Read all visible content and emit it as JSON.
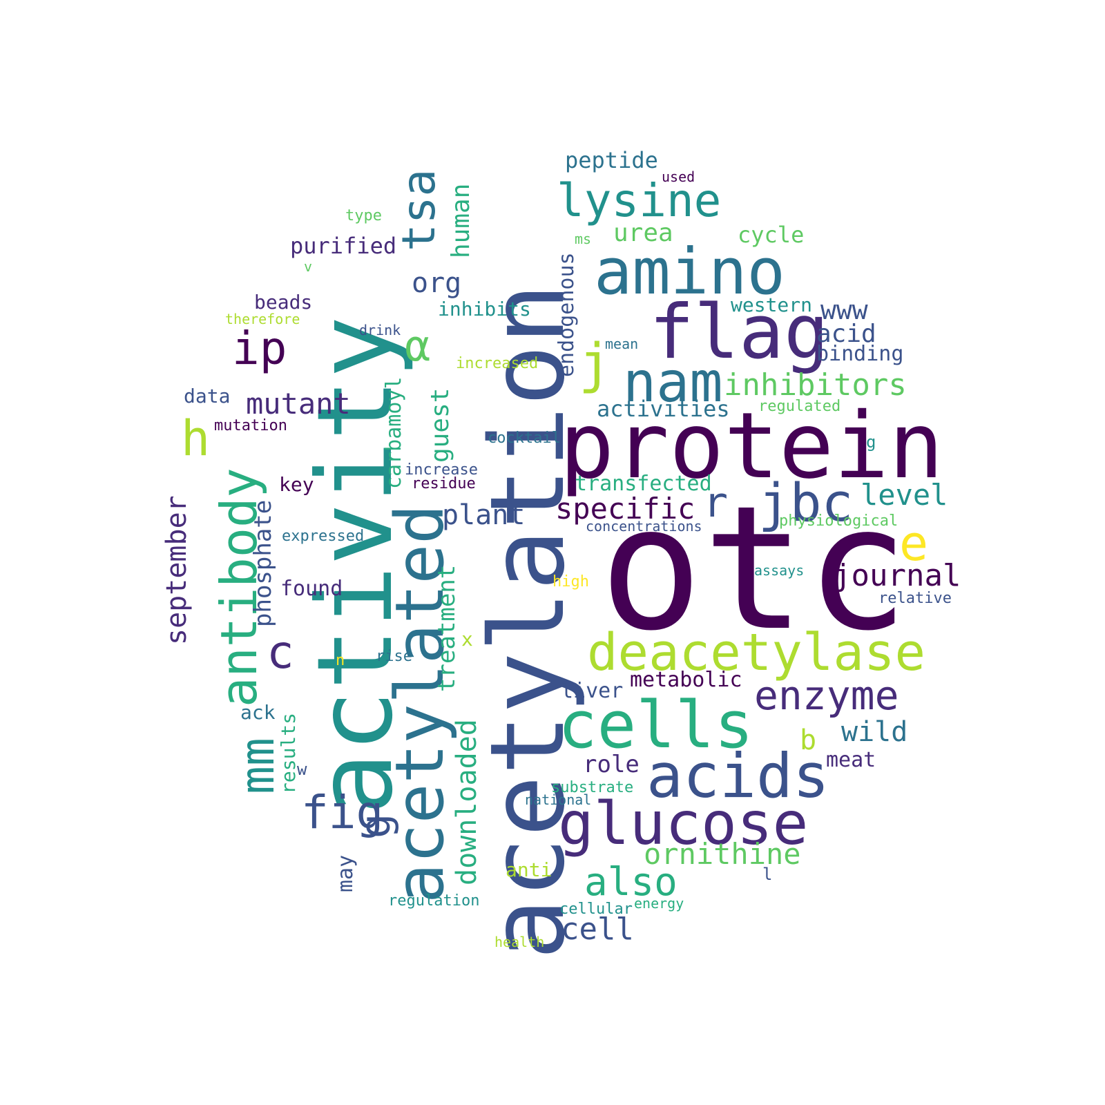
{
  "colors": {
    "c1": "#440154",
    "c2": "#472c7a",
    "c3": "#3b528b",
    "c4": "#2c728e",
    "c5": "#21918c",
    "c6": "#28ae80",
    "c7": "#5ec962",
    "c8": "#addc30",
    "c9": "#fde725"
  },
  "words": {
    "otc": "otc",
    "acetylation": "acetylation",
    "activity": "activity",
    "protein": "protein",
    "deacetylase": "deacetylase",
    "acetylated": "acetylated",
    "amino": "amino",
    "flag": "flag",
    "nam": "nam",
    "cells": "cells",
    "acids": "acids",
    "glucose": "glucose",
    "lysine": "lysine",
    "antibody": "antibody",
    "jbc": "jbc",
    "tsa": "tsa",
    "enzyme": "enzyme",
    "mm": "mm",
    "fig": "fig",
    "ip": "ip",
    "alpha": "α",
    "j": "j",
    "h": "h",
    "c": "c",
    "g": "g",
    "r": "r",
    "e": "e",
    "inhibitors": "inhibitors",
    "also": "also",
    "ornithine": "ornithine",
    "specific": "specific",
    "mutant": "mutant",
    "journal": "journal",
    "plant": "plant",
    "cell": "cell",
    "downloaded": "downloaded",
    "september": "september",
    "phosphate": "phosphate",
    "treatment": "treatment",
    "guest": "guest",
    "endogenous": "endogenous",
    "human": "human",
    "www": "www",
    "level": "level",
    "wild": "wild",
    "acid": "acid",
    "org": "org",
    "purified": "purified",
    "peptide": "peptide",
    "urea": "urea",
    "cycle": "cycle",
    "activities": "activities",
    "metabolic": "metabolic",
    "role": "role",
    "carbamoyl": "carbamoyl",
    "transfected": "transfected",
    "inhibits": "inhibits",
    "western": "western",
    "binding": "binding",
    "liver": "liver",
    "found": "found",
    "beads": "beads",
    "data": "data",
    "results": "results",
    "may": "may",
    "meat": "meat",
    "key": "key",
    "b": "b",
    "ack": "ack",
    "mutation": "mutation",
    "cocktail": "cocktail",
    "increase": "increase",
    "residue": "residue",
    "expressed": "expressed",
    "concentrations": "concentrations",
    "physiological": "physiological",
    "regulated": "regulated",
    "assays": "assays",
    "relative": "relative",
    "high": "high",
    "substrate": "substrate",
    "national": "national",
    "regulation": "regulation",
    "cellular": "cellular",
    "energy": "energy",
    "health": "health",
    "anti": "anti",
    "increased": "increased",
    "mean": "mean",
    "drink": "drink",
    "therefore": "therefore",
    "type": "type",
    "used": "used",
    "ms": "ms",
    "v": "v",
    "rise": "rise",
    "n": "n",
    "x": "x",
    "w": "w",
    "l": "l",
    "g2": "g"
  }
}
